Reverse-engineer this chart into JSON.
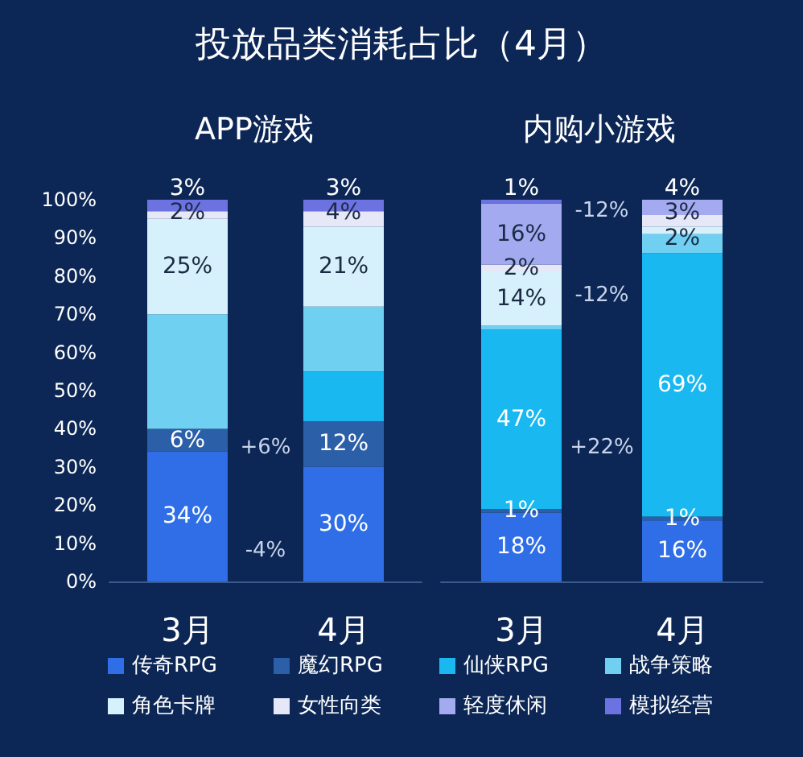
{
  "chart_data": [
    {
      "type": "bar",
      "title": "投放品类消耗占比（4月）",
      "subtitle": "APP游戏",
      "categories": [
        "3月",
        "4月"
      ],
      "stacked": true,
      "ylim": [
        0,
        100
      ],
      "yticks": [
        {
          "value": 0,
          "label": "0%"
        },
        {
          "value": 10,
          "label": "10%"
        },
        {
          "value": 20,
          "label": "20%"
        },
        {
          "value": 30,
          "label": "30%"
        },
        {
          "value": 40,
          "label": "40%"
        },
        {
          "value": 50,
          "label": "50%"
        },
        {
          "value": 60,
          "label": "60%"
        },
        {
          "value": 70,
          "label": "70%"
        },
        {
          "value": 80,
          "label": "80%"
        },
        {
          "value": 90,
          "label": "90%"
        },
        {
          "value": 100,
          "label": "100%"
        }
      ],
      "series": [
        {
          "name": "传奇RPG",
          "color": "#2f6ee6",
          "values": [
            34,
            30
          ],
          "value_labels": [
            "34%",
            "30%"
          ]
        },
        {
          "name": "魔幻RPG",
          "color": "#2b5fa8",
          "values": [
            6,
            12
          ],
          "value_labels": [
            "6%",
            "12%"
          ]
        },
        {
          "name": "仙侠RPG",
          "color": "#19b8f0",
          "values": [
            0,
            13
          ],
          "value_labels": [
            null,
            null
          ]
        },
        {
          "name": "战争策略",
          "color": "#6fd0f2",
          "values": [
            30,
            17
          ],
          "value_labels": [
            null,
            null
          ]
        },
        {
          "name": "角色卡牌",
          "color": "#d6f1fb",
          "values": [
            25,
            21
          ],
          "value_labels": [
            "25%",
            "21%"
          ]
        },
        {
          "name": "女性向类",
          "color": "#e6e8f7",
          "values": [
            2,
            4
          ],
          "value_labels": [
            "2%",
            "4%"
          ]
        },
        {
          "name": "轻度休闲",
          "color": "#a3aaf0",
          "values": [
            0,
            0
          ],
          "value_labels": [
            null,
            null
          ]
        },
        {
          "name": "模拟经营",
          "color": "#6c72e0",
          "values": [
            3,
            3
          ],
          "value_labels": [
            "3%",
            "3%"
          ]
        }
      ],
      "annotations": [
        "-4%",
        "+6%"
      ],
      "legend": "bottom",
      "grid": false
    },
    {
      "type": "bar",
      "subtitle": "内购小游戏",
      "categories": [
        "3月",
        "4月"
      ],
      "stacked": true,
      "ylim": [
        0,
        100
      ],
      "tick_labels": "x",
      "series": [
        {
          "color": "#2f6ee6",
          "values": [
            18,
            16
          ],
          "value_labels": [
            "18%",
            "16%"
          ]
        },
        {
          "color": "#2b5fa8",
          "values": [
            1,
            1
          ],
          "value_labels": [
            "1%",
            "1%"
          ]
        },
        {
          "color": "#19b8f0",
          "values": [
            47,
            69
          ],
          "value_labels": [
            "47%",
            "69%"
          ]
        },
        {
          "color": "#6fd0f2",
          "values": [
            1,
            5
          ],
          "value_labels": [
            null,
            null
          ]
        },
        {
          "color": "#d6f1fb",
          "values": [
            14,
            2
          ],
          "value_labels": [
            "14%",
            "2%"
          ]
        },
        {
          "color": "#e6e8f7",
          "values": [
            2,
            3
          ],
          "value_labels": [
            "2%",
            "3%"
          ]
        },
        {
          "color": "#a3aaf0",
          "values": [
            16,
            4
          ],
          "value_labels": [
            "16%",
            "4%"
          ]
        },
        {
          "color": "#6c72e0",
          "values": [
            1,
            0
          ],
          "value_labels": [
            "1%",
            null
          ]
        }
      ],
      "annotations": [
        "-12%",
        "-12%",
        "+22%"
      ],
      "grid": false
    }
  ]
}
